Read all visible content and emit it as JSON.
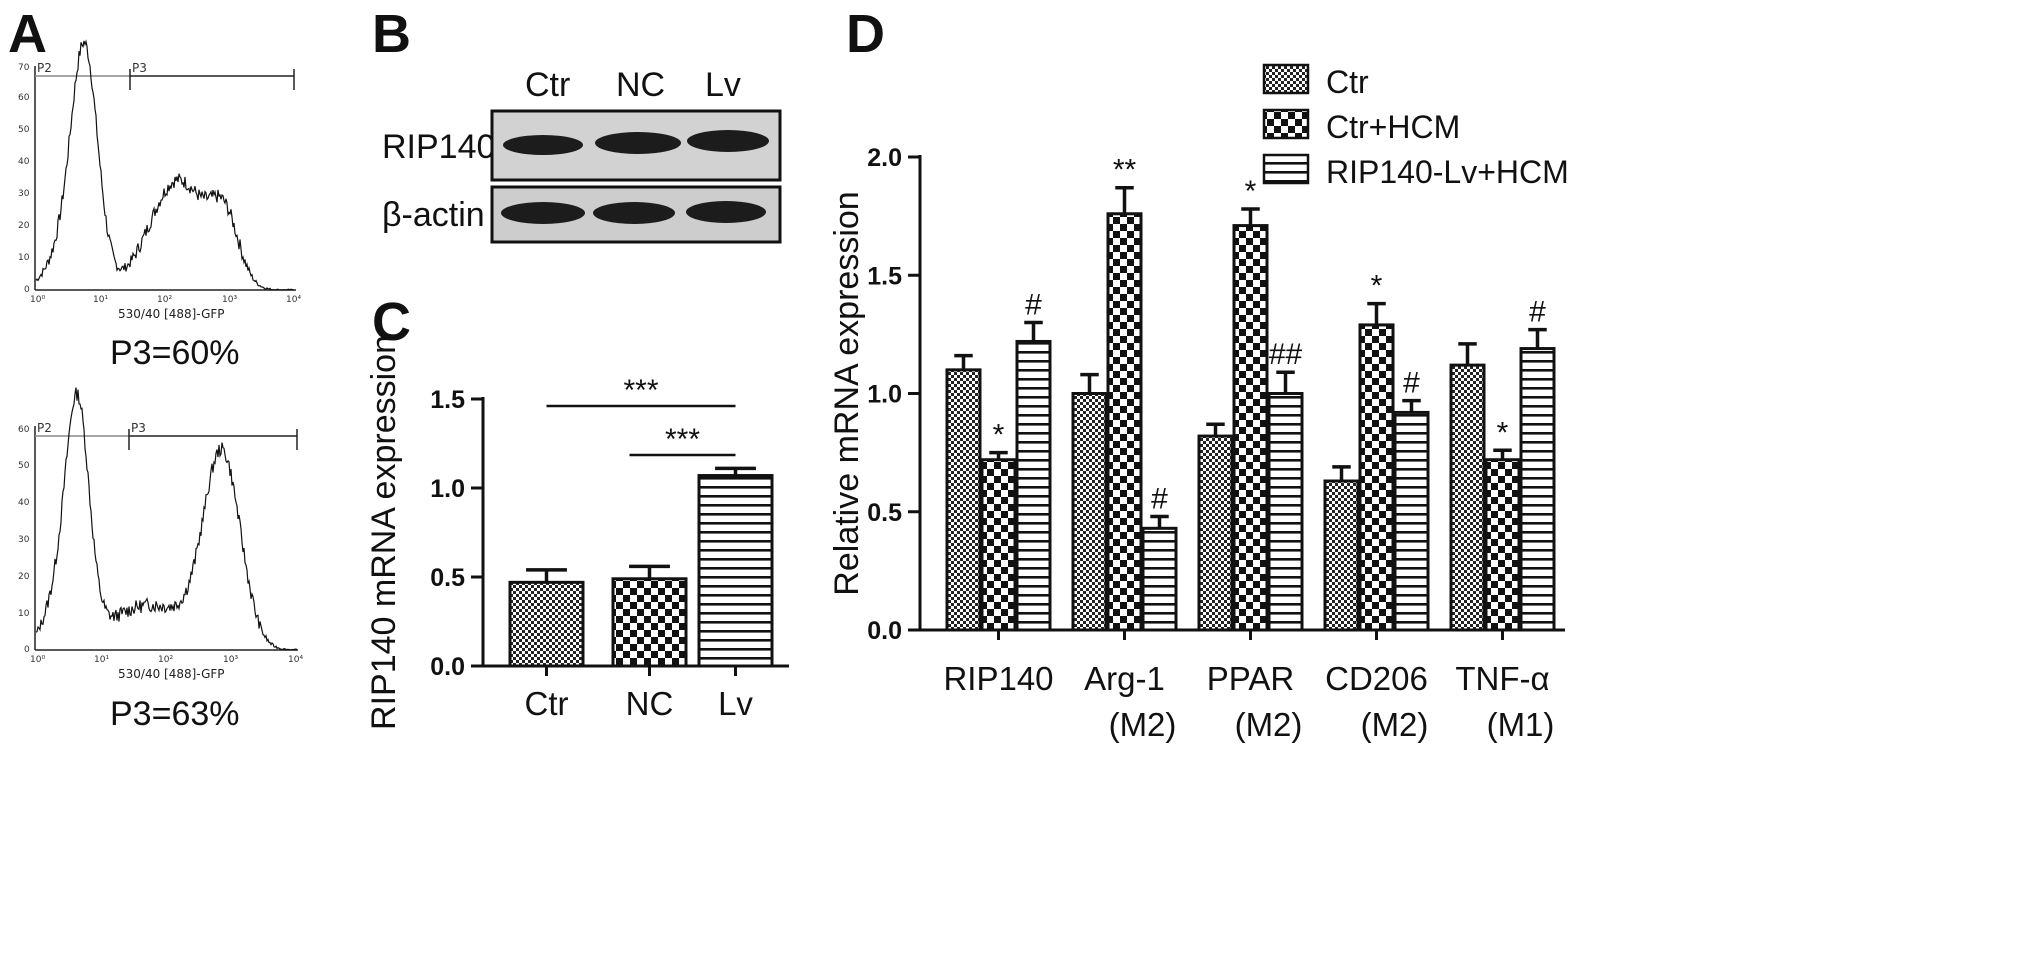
{
  "colors": {
    "ink": "#111111",
    "band": "#1c1c1c",
    "blot_bg": "#cfcfcf"
  },
  "panels": {
    "A": {
      "label": "A",
      "histograms": [
        {
          "gates": [
            "P2",
            "P3"
          ],
          "xlabel": "530/40 [488]-GFP",
          "yticks": [
            "70",
            "60",
            "50",
            "40",
            "30",
            "20",
            "10",
            "0"
          ],
          "xticks": [
            "10⁰",
            "10¹",
            "10²",
            "10³",
            "10⁴"
          ],
          "result": "P3=60%"
        },
        {
          "gates": [
            "P2",
            "P3"
          ],
          "xlabel": "530/40 [488]-GFP",
          "yticks": [
            "60",
            "50",
            "40",
            "30",
            "20",
            "10",
            "0"
          ],
          "xticks": [
            "10⁰",
            "10¹",
            "10²",
            "10³",
            "10⁴"
          ],
          "result": "P3=63%"
        }
      ]
    },
    "B": {
      "label": "B",
      "lanes": [
        "Ctr",
        "NC",
        "Lv"
      ],
      "rows": [
        "RIP140",
        "β-actin"
      ]
    }
  },
  "chart_data": [
    {
      "panel": "C",
      "type": "bar",
      "categories": [
        "Ctr",
        "NC",
        "Lv"
      ],
      "values": [
        0.47,
        0.49,
        1.07
      ],
      "errors": [
        0.07,
        0.07,
        0.04
      ],
      "patterns": [
        "dense-check",
        "checker",
        "hstripe"
      ],
      "ylabel": "RIP140 mRNA expression",
      "ylim": [
        0,
        1.5
      ],
      "yticks": [
        "0.0",
        "0.5",
        "1.0",
        "1.5"
      ],
      "significance": [
        {
          "from": 0,
          "to": 2,
          "text": "***"
        },
        {
          "from": 1,
          "to": 2,
          "text": "***"
        }
      ]
    },
    {
      "panel": "D",
      "type": "bar",
      "categories": [
        "RIP140",
        "Arg-1",
        "PPAR",
        "CD206",
        "TNF-α"
      ],
      "subcategories": [
        "",
        "(M2)",
        "(M2)",
        "(M2)",
        "(M1)"
      ],
      "ylabel": "Relative  mRNA  expression",
      "ylim": [
        0,
        2.0
      ],
      "yticks": [
        "0.0",
        "0.5",
        "1.0",
        "1.5",
        "2.0"
      ],
      "legend_position": "top-right",
      "series": [
        {
          "name": "Ctr",
          "pattern": "dense-check",
          "values": [
            1.1,
            1.0,
            0.82,
            0.63,
            1.12
          ],
          "errors": [
            0.06,
            0.08,
            0.05,
            0.06,
            0.09
          ],
          "marks": [
            "",
            "",
            "",
            "",
            ""
          ]
        },
        {
          "name": "Ctr+HCM",
          "pattern": "checker",
          "values": [
            0.72,
            1.76,
            1.71,
            1.29,
            0.72
          ],
          "errors": [
            0.03,
            0.11,
            0.07,
            0.09,
            0.04
          ],
          "marks": [
            "*",
            "**",
            "*",
            "*",
            "*"
          ]
        },
        {
          "name": "RIP140-Lv+HCM",
          "pattern": "hstripe",
          "values": [
            1.22,
            0.43,
            1.0,
            0.92,
            1.19
          ],
          "errors": [
            0.08,
            0.05,
            0.09,
            0.05,
            0.08
          ],
          "marks": [
            "#",
            "#",
            "##",
            "#",
            "#"
          ]
        }
      ]
    }
  ]
}
